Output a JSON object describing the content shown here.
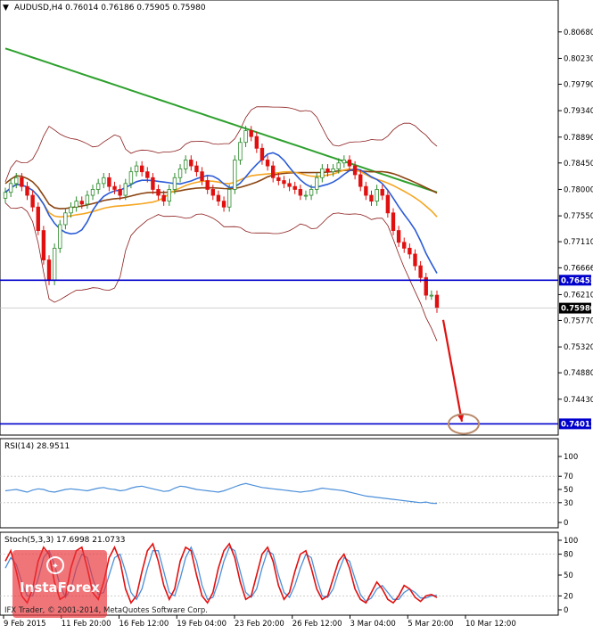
{
  "header": {
    "symbol_line": "AUDUSD,H4  0.76014 0.76186 0.75905 0.75980"
  },
  "colors": {
    "candle_up": "#2b8a2b",
    "candle_down": "#e01010",
    "bollinger": "#8b1a1a",
    "ma_long": "#2ea02e",
    "ma_mid": "#8b4513",
    "ma_orange": "#f5a623",
    "ma_blue": "#2a5bd7",
    "level_line": "#0000cc",
    "arrow": "#e01010",
    "rsi_line": "#4b8fd9",
    "stoch_main": "#e01010",
    "stoch_signal": "#4b8fd9"
  },
  "chart_data": [
    {
      "type": "candlestick",
      "name": "AUDUSD,H4",
      "ylim": [
        0.7385,
        0.8095
      ],
      "y_ticks": [
        "0.80680",
        "0.80230",
        "0.79790",
        "0.79340",
        "0.78890",
        "0.78450",
        "0.78000",
        "0.77550",
        "0.77110",
        "0.76666",
        "0.76210",
        "0.75770",
        "0.75320",
        "0.74880",
        "0.74430"
      ],
      "price_labels": [
        {
          "text": "0.76455",
          "value": 0.76455,
          "kind": "level"
        },
        {
          "text": "0.75980",
          "value": 0.7598,
          "kind": "current"
        },
        {
          "text": "0.74011",
          "value": 0.74011,
          "kind": "level"
        }
      ],
      "levels": [
        0.76455,
        0.74011
      ],
      "close": [
        0.7795,
        0.781,
        0.782,
        0.7805,
        0.779,
        0.777,
        0.773,
        0.768,
        0.7645,
        0.77,
        0.774,
        0.776,
        0.777,
        0.778,
        0.7775,
        0.779,
        0.78,
        0.781,
        0.782,
        0.7805,
        0.78,
        0.779,
        0.781,
        0.783,
        0.784,
        0.783,
        0.782,
        0.78,
        0.779,
        0.778,
        0.78,
        0.782,
        0.7835,
        0.785,
        0.784,
        0.783,
        0.7815,
        0.78,
        0.779,
        0.778,
        0.777,
        0.78,
        0.785,
        0.788,
        0.79,
        0.789,
        0.787,
        0.785,
        0.784,
        0.782,
        0.7815,
        0.781,
        0.7805,
        0.78,
        0.779,
        0.779,
        0.78,
        0.782,
        0.7835,
        0.783,
        0.7835,
        0.7845,
        0.785,
        0.784,
        0.7825,
        0.7805,
        0.779,
        0.778,
        0.78,
        0.779,
        0.776,
        0.773,
        0.771,
        0.77,
        0.769,
        0.767,
        0.765,
        0.762,
        0.762,
        0.7598
      ],
      "trend_arrow": {
        "from_value": 0.7578,
        "to_value": 0.7405
      },
      "target_circle_value": 0.7401
    },
    {
      "type": "line",
      "name": "RSI(14)",
      "title": "RSI(14) 28.9511",
      "ylim": [
        0,
        100
      ],
      "y_ticks": [
        "100",
        "70",
        "50",
        "30",
        "0"
      ],
      "values": [
        48,
        49,
        50,
        48,
        46,
        49,
        51,
        50,
        47,
        46,
        48,
        50,
        51,
        50,
        49,
        48,
        50,
        52,
        53,
        51,
        50,
        48,
        49,
        52,
        54,
        55,
        53,
        51,
        49,
        47,
        48,
        52,
        55,
        54,
        52,
        50,
        49,
        48,
        47,
        46,
        48,
        51,
        54,
        57,
        59,
        57,
        55,
        53,
        52,
        51,
        50,
        49,
        48,
        47,
        46,
        47,
        48,
        50,
        52,
        51,
        50,
        49,
        48,
        46,
        44,
        42,
        40,
        39,
        38,
        37,
        36,
        35,
        34,
        33,
        32,
        31,
        30,
        31,
        29,
        28.95
      ]
    },
    {
      "type": "line",
      "name": "Stoch(5,3,3)",
      "title": "Stoch(5,3,3) 17.6998 21.0733",
      "ylim": [
        0,
        100
      ],
      "y_ticks": [
        "100",
        "80",
        "50",
        "20",
        "0"
      ],
      "series": [
        {
          "name": "main",
          "values": [
            70,
            85,
            55,
            20,
            10,
            30,
            70,
            90,
            80,
            40,
            15,
            20,
            60,
            85,
            90,
            60,
            25,
            15,
            40,
            75,
            90,
            70,
            30,
            10,
            20,
            55,
            85,
            95,
            70,
            35,
            15,
            30,
            70,
            90,
            85,
            50,
            20,
            10,
            25,
            60,
            85,
            95,
            75,
            40,
            15,
            20,
            50,
            80,
            90,
            70,
            35,
            15,
            25,
            55,
            80,
            85,
            60,
            30,
            15,
            20,
            45,
            70,
            80,
            60,
            30,
            15,
            10,
            25,
            40,
            30,
            15,
            10,
            20,
            35,
            30,
            18,
            12,
            20,
            22,
            17.7
          ]
        },
        {
          "name": "signal",
          "values": [
            60,
            75,
            65,
            40,
            20,
            20,
            45,
            75,
            85,
            65,
            35,
            18,
            30,
            60,
            80,
            75,
            45,
            22,
            25,
            50,
            75,
            80,
            55,
            25,
            15,
            30,
            60,
            85,
            85,
            55,
            25,
            20,
            45,
            75,
            90,
            70,
            35,
            15,
            18,
            40,
            70,
            90,
            85,
            55,
            25,
            18,
            30,
            60,
            85,
            80,
            50,
            25,
            18,
            35,
            60,
            80,
            75,
            45,
            20,
            18,
            30,
            55,
            75,
            70,
            45,
            22,
            12,
            17,
            30,
            35,
            25,
            15,
            15,
            25,
            30,
            25,
            17,
            17,
            20,
            21.07
          ]
        }
      ]
    }
  ],
  "xaxis": {
    "labels": [
      "9 Feb 2015",
      "11 Feb 20:00",
      "16 Feb 12:00",
      "19 Feb 04:00",
      "23 Feb 20:00",
      "26 Feb 12:00",
      "3 Mar 04:00",
      "5 Mar 20:00",
      "10 Mar 12:00"
    ]
  },
  "watermark": {
    "brand": "InstaForex",
    "copyright": "IFX Trader, © 2001-2014, MetaQuotes Software Corp."
  }
}
